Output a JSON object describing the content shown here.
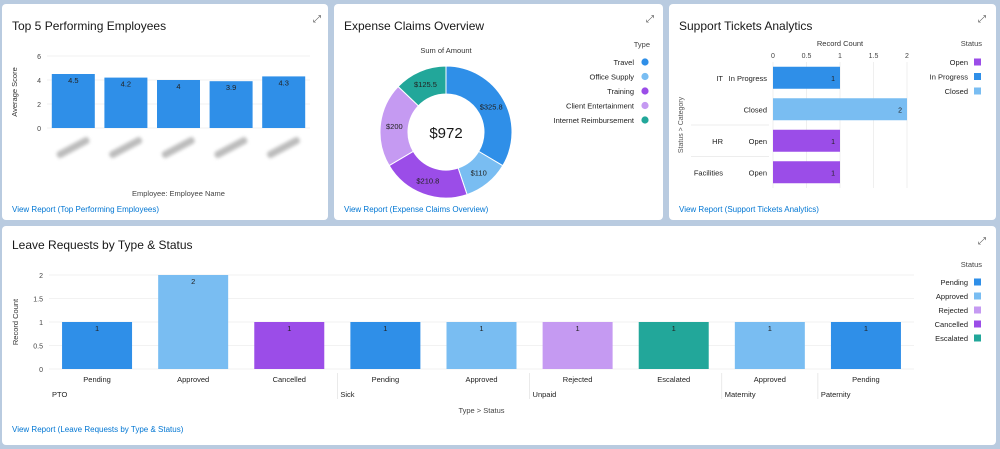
{
  "cards": {
    "employees": {
      "title": "Top 5 Performing Employees",
      "link": "View Report (Top Performing Employees)",
      "chart_data": {
        "type": "bar",
        "ylabel": "Average Score",
        "xlabel": "Employee: Employee Name",
        "ylim": [
          0,
          6
        ],
        "yticks": [
          0,
          2,
          4,
          6
        ],
        "values": [
          4.5,
          4.2,
          4,
          3.9,
          4.3
        ],
        "color": "#2f8fe8"
      }
    },
    "expenses": {
      "title": "Expense Claims Overview",
      "link": "View Report (Expense Claims Overview)",
      "chart_data": {
        "type": "pie",
        "subtitle": "Sum of Amount",
        "total": "$972",
        "legend_title": "Type",
        "slices": [
          {
            "name": "Travel",
            "value": 325.8,
            "label": "$325.8",
            "color": "#2f8fe8"
          },
          {
            "name": "Office Supply",
            "value": 110,
            "label": "$110",
            "color": "#79bdf2"
          },
          {
            "name": "Training",
            "value": 210.8,
            "label": "$210.8",
            "color": "#9b4de8"
          },
          {
            "name": "Client Entertainment",
            "value": 200,
            "label": "$200",
            "color": "#c59af2"
          },
          {
            "name": "Internet Reimbursement",
            "value": 125.5,
            "label": "$125.5",
            "color": "#22a79a"
          }
        ]
      }
    },
    "tickets": {
      "title": "Support Tickets Analytics",
      "link": "View Report (Support Tickets Analytics)",
      "chart_data": {
        "type": "bar",
        "orientation": "horizontal",
        "xlabel": "Record Count",
        "ylabel": "Status > Category",
        "xlim": [
          0,
          2
        ],
        "xticks": [
          "0",
          "0.5",
          "1",
          "1.5",
          "2"
        ],
        "legend_title": "Status",
        "legend": [
          {
            "name": "Open",
            "color": "#9b4de8"
          },
          {
            "name": "In Progress",
            "color": "#2f8fe8"
          },
          {
            "name": "Closed",
            "color": "#79bdf2"
          }
        ],
        "rows": [
          {
            "category": "IT",
            "status": "In Progress",
            "value": 1,
            "label": "1",
            "color": "#2f8fe8"
          },
          {
            "category": "",
            "status": "Closed",
            "value": 2,
            "label": "2",
            "color": "#79bdf2"
          },
          {
            "category": "HR",
            "status": "Open",
            "value": 1,
            "label": "1",
            "color": "#9b4de8"
          },
          {
            "category": "Facilities",
            "status": "Open",
            "value": 1,
            "label": "1",
            "color": "#9b4de8"
          }
        ]
      }
    },
    "leave": {
      "title": "Leave Requests by Type & Status",
      "link": "View Report (Leave Requests by Type & Status)",
      "chart_data": {
        "type": "bar",
        "ylabel": "Record Count",
        "xlabel": "Type > Status",
        "ylim": [
          0,
          2
        ],
        "yticks": [
          "0",
          "0.5",
          "1",
          "1.5",
          "2"
        ],
        "legend_title": "Status",
        "legend": [
          {
            "name": "Pending",
            "color": "#2f8fe8"
          },
          {
            "name": "Approved",
            "color": "#79bdf2"
          },
          {
            "name": "Rejected",
            "color": "#c59af2"
          },
          {
            "name": "Cancelled",
            "color": "#9b4de8"
          },
          {
            "name": "Escalated",
            "color": "#22a79a"
          }
        ],
        "groups": [
          {
            "type": "PTO",
            "bars": [
              {
                "status": "Pending",
                "value": 1,
                "label": "1",
                "color": "#2f8fe8"
              },
              {
                "status": "Approved",
                "value": 2,
                "label": "2",
                "color": "#79bdf2"
              },
              {
                "status": "Cancelled",
                "value": 1,
                "label": "1",
                "color": "#9b4de8"
              }
            ]
          },
          {
            "type": "Sick",
            "bars": [
              {
                "status": "Pending",
                "value": 1,
                "label": "1",
                "color": "#2f8fe8"
              },
              {
                "status": "Approved",
                "value": 1,
                "label": "1",
                "color": "#79bdf2"
              }
            ]
          },
          {
            "type": "Unpaid",
            "bars": [
              {
                "status": "Rejected",
                "value": 1,
                "label": "1",
                "color": "#c59af2"
              },
              {
                "status": "Escalated",
                "value": 1,
                "label": "1",
                "color": "#22a79a"
              }
            ]
          },
          {
            "type": "Maternity",
            "bars": [
              {
                "status": "Approved",
                "value": 1,
                "label": "1",
                "color": "#79bdf2"
              }
            ]
          },
          {
            "type": "Paternity",
            "bars": [
              {
                "status": "Pending",
                "value": 1,
                "label": "1",
                "color": "#2f8fe8"
              }
            ]
          }
        ]
      }
    }
  }
}
